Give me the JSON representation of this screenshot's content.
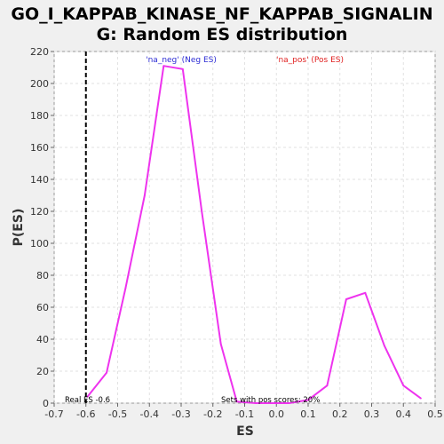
{
  "chart_data": {
    "type": "line",
    "title_line1": "GO_I_KAPPAB_KINASE_NF_KAPPAB_SIGNALIN",
    "title_line2": "G: Random ES distribution",
    "xlabel": "ES",
    "ylabel": "P(ES)",
    "xlim": [
      -0.7,
      0.5
    ],
    "ylim": [
      0,
      220
    ],
    "x_ticks": [
      -0.7,
      -0.6,
      -0.5,
      -0.4,
      -0.3,
      -0.2,
      -0.1,
      0.0,
      0.1,
      0.2,
      0.3,
      0.4,
      0.5
    ],
    "x_tick_labels": [
      "-0.7",
      "-0.6",
      "-0.5",
      "-0.4",
      "-0.3",
      "-0.2",
      "-0.1",
      "0.0",
      "0.1",
      "0.2",
      "0.3",
      "0.4",
      "0.5"
    ],
    "y_ticks": [
      0,
      20,
      40,
      60,
      80,
      100,
      120,
      140,
      160,
      180,
      200,
      220
    ],
    "y_tick_labels": [
      "0",
      "20",
      "40",
      "60",
      "80",
      "100",
      "120",
      "140",
      "160",
      "180",
      "200",
      "220"
    ],
    "grid": true,
    "series": [
      {
        "color": "#ee33ee",
        "x": [
          -0.595,
          -0.535,
          -0.475,
          -0.415,
          -0.355,
          -0.295,
          -0.235,
          -0.175,
          -0.125,
          -0.065,
          0.0,
          0.04,
          0.1,
          0.16,
          0.22,
          0.28,
          0.34,
          0.4,
          0.455
        ],
        "y": [
          4,
          19,
          72,
          130,
          211,
          209,
          120,
          37,
          1,
          0,
          0,
          0,
          2,
          11,
          65,
          69,
          36,
          11,
          3
        ]
      }
    ],
    "real_es": -0.6,
    "real_es_line_color": "#000000",
    "legend_neg": "'na_neg' (Neg ES)",
    "legend_pos": "'na_pos' (Pos ES)",
    "annotation_real_es": "Real ES -0.6",
    "annotation_pos_scores": "Sets with pos scores: 20%"
  }
}
